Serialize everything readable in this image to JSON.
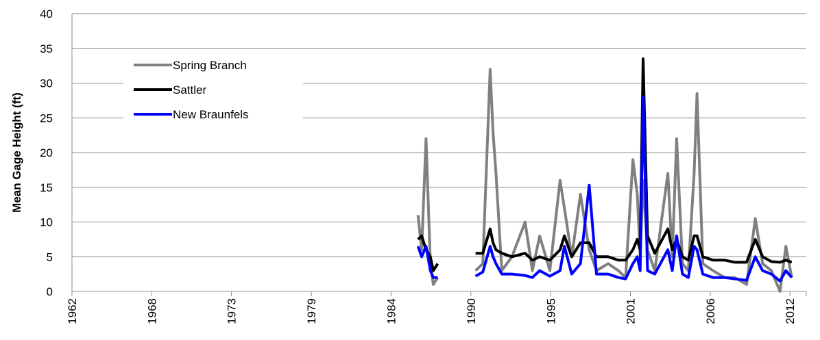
{
  "chart_data": {
    "type": "line",
    "y_label": "Mean Gage Height (ft)",
    "x": [
      1985.75,
      1986.0,
      1986.3,
      1986.6,
      1986.8,
      1987.1,
      1988.4,
      1989.7,
      1990.2,
      1990.7,
      1990.9,
      1991.1,
      1991.5,
      1992.2,
      1993.1,
      1993.6,
      1994.1,
      1994.8,
      1995.5,
      1995.8,
      1996.3,
      1996.9,
      1997.5,
      1998.0,
      1998.8,
      1999.5,
      2000.0,
      2000.5,
      2000.8,
      2001.0,
      2001.2,
      2001.5,
      2002.0,
      2002.9,
      2003.2,
      2003.5,
      2003.9,
      2004.3,
      2004.7,
      2004.9,
      2005.3,
      2006.0,
      2006.8,
      2007.5,
      2008.3,
      2008.9,
      2009.4,
      2010.0,
      2010.6,
      2011.0,
      2011.4
    ],
    "series": [
      {
        "name": "Spring Branch",
        "color": "#808080",
        "values": [
          11,
          6,
          22,
          4,
          1,
          2,
          null,
          3,
          4,
          32,
          23,
          17,
          3,
          5,
          10,
          3,
          8,
          3,
          16,
          12,
          5,
          14,
          6,
          3,
          4,
          3,
          2,
          19,
          14,
          5,
          16,
          6,
          3,
          17,
          5,
          22,
          4,
          3,
          17,
          28.5,
          4,
          3,
          2,
          2,
          1,
          10.5,
          4,
          3,
          0,
          6.5,
          2
        ]
      },
      {
        "name": "Sattler",
        "color": "#000000",
        "values": [
          7.5,
          8,
          6,
          5,
          3,
          4,
          null,
          5.5,
          5.5,
          9,
          7,
          6,
          5.5,
          5,
          5.5,
          4.5,
          5,
          4.5,
          6,
          8,
          5,
          7,
          7,
          5,
          5,
          4.5,
          4.5,
          6,
          7.5,
          6,
          33.5,
          8,
          5.5,
          9,
          6,
          7.5,
          5,
          4.5,
          8,
          8,
          5,
          4.5,
          4.5,
          4.2,
          4.2,
          7.5,
          5,
          4.3,
          4.2,
          4.5,
          4.2
        ]
      },
      {
        "name": "New Braunfels",
        "color": "#0000ff",
        "values": [
          6.5,
          5,
          6.5,
          3,
          2,
          2,
          null,
          2.2,
          2.8,
          6.5,
          5,
          4,
          2.5,
          2.5,
          2.3,
          2.0,
          3,
          2.2,
          3,
          6.5,
          2.5,
          4,
          15.3,
          2.5,
          2.5,
          2.0,
          1.8,
          4,
          5,
          3,
          28,
          3,
          2.5,
          6,
          3,
          8,
          2.5,
          2.0,
          6.5,
          6,
          2.5,
          2.0,
          2.0,
          1.8,
          1.6,
          5,
          3,
          2.5,
          1.5,
          3,
          2
        ]
      }
    ],
    "xlim": [
      1962.0,
      2012.4
    ],
    "xticks": [
      {
        "value": 1962.0,
        "label": "1962"
      },
      {
        "value": 1967.48,
        "label": "1968"
      },
      {
        "value": 1972.95,
        "label": "1973"
      },
      {
        "value": 1978.43,
        "label": "1979"
      },
      {
        "value": 1983.9,
        "label": "1984"
      },
      {
        "value": 1989.38,
        "label": "1990"
      },
      {
        "value": 1994.86,
        "label": "1995"
      },
      {
        "value": 2000.33,
        "label": "2001"
      },
      {
        "value": 2005.81,
        "label": "2006"
      },
      {
        "value": 2011.28,
        "label": "2012"
      }
    ],
    "ylim": [
      0,
      40
    ],
    "yticks": [
      0,
      5,
      10,
      15,
      20,
      25,
      30,
      35,
      40
    ],
    "grid": true,
    "legend": "upper left"
  }
}
